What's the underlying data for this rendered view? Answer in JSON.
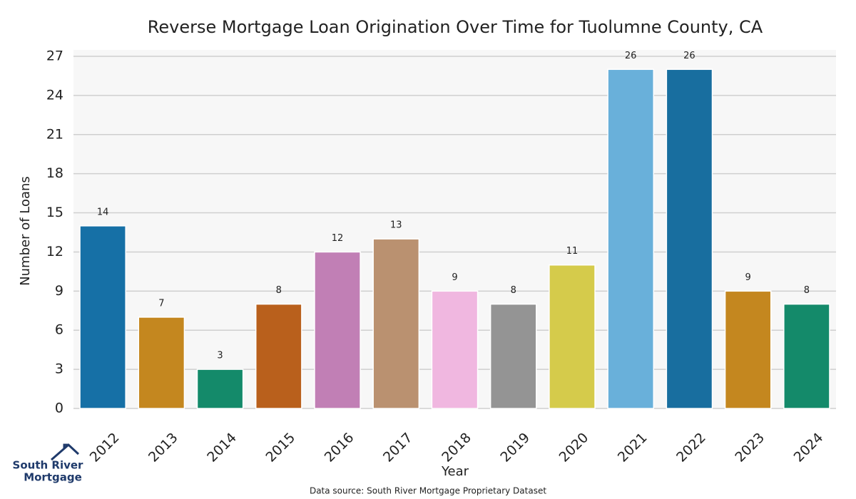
{
  "chart_data": {
    "type": "bar",
    "title": "Reverse Mortgage Loan Origination Over Time for Tuolumne County, CA",
    "x_label": "Year",
    "y_label": "Number of Loans",
    "categories": [
      "2012",
      "2013",
      "2014",
      "2015",
      "2016",
      "2017",
      "2018",
      "2019",
      "2020",
      "2021",
      "2022",
      "2023",
      "2024"
    ],
    "values": [
      14,
      7,
      3,
      8,
      12,
      13,
      9,
      8,
      11,
      26,
      26,
      9,
      8
    ],
    "colors": [
      "#1670a6",
      "#c4871f",
      "#148a6a",
      "#b9601c",
      "#c17fb5",
      "#ba9170",
      "#f0b7e0",
      "#949494",
      "#d5cb4b",
      "#69b0da",
      "#186e9f",
      "#c4871f",
      "#148a6a"
    ],
    "ylim": [
      0,
      27
    ],
    "yticks": [
      0,
      3,
      6,
      9,
      12,
      15,
      18,
      21,
      24,
      27
    ],
    "grid": true,
    "source": "Data source: South River Mortgage Proprietary Dataset",
    "logo": [
      "South River",
      "Mortgage"
    ]
  }
}
